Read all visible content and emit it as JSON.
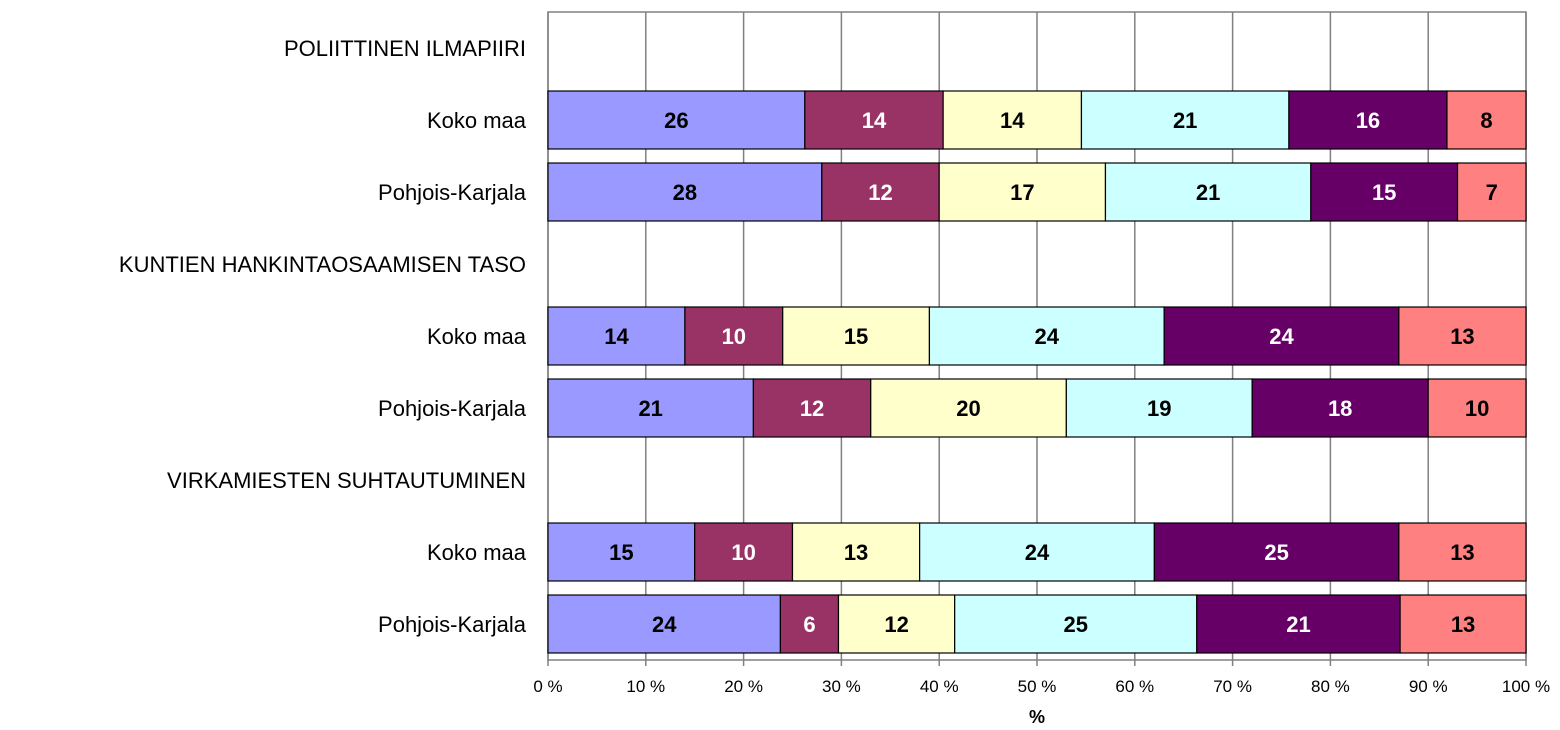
{
  "chart_data": {
    "type": "bar",
    "orientation": "horizontal",
    "stacked": "percent",
    "categories": [
      "POLIITTINEN ILMAPIIRI",
      "Koko maa",
      "Pohjois-Karjala",
      "KUNTIEN HANKINTAOSAAMISEN TASO",
      "Koko maa",
      "Pohjois-Karjala",
      "VIRKAMIESTEN SUHTAUTUMINEN",
      "Koko maa",
      "Pohjois-Karjala"
    ],
    "series": [
      {
        "color": "#9999ff",
        "label_color": "#000000",
        "values": [
          null,
          26,
          28,
          null,
          14,
          21,
          null,
          15,
          24
        ]
      },
      {
        "color": "#993366",
        "label_color": "#ffffff",
        "values": [
          null,
          14,
          12,
          null,
          10,
          12,
          null,
          10,
          6
        ]
      },
      {
        "color": "#ffffcc",
        "label_color": "#000000",
        "values": [
          null,
          14,
          17,
          null,
          15,
          20,
          null,
          13,
          12
        ]
      },
      {
        "color": "#ccffff",
        "label_color": "#000000",
        "values": [
          null,
          21,
          21,
          null,
          24,
          19,
          null,
          24,
          25
        ]
      },
      {
        "color": "#660066",
        "label_color": "#ffffff",
        "values": [
          null,
          16,
          15,
          null,
          24,
          18,
          null,
          25,
          21
        ]
      },
      {
        "color": "#ff8080",
        "label_color": "#000000",
        "values": [
          null,
          8,
          7,
          null,
          13,
          10,
          null,
          13,
          13
        ]
      }
    ],
    "xlabel": "%",
    "xlim": [
      0,
      100
    ],
    "xticks": [
      0,
      10,
      20,
      30,
      40,
      50,
      60,
      70,
      80,
      90,
      100
    ],
    "tick_suffix": " %",
    "grid": true,
    "legend": "none"
  }
}
